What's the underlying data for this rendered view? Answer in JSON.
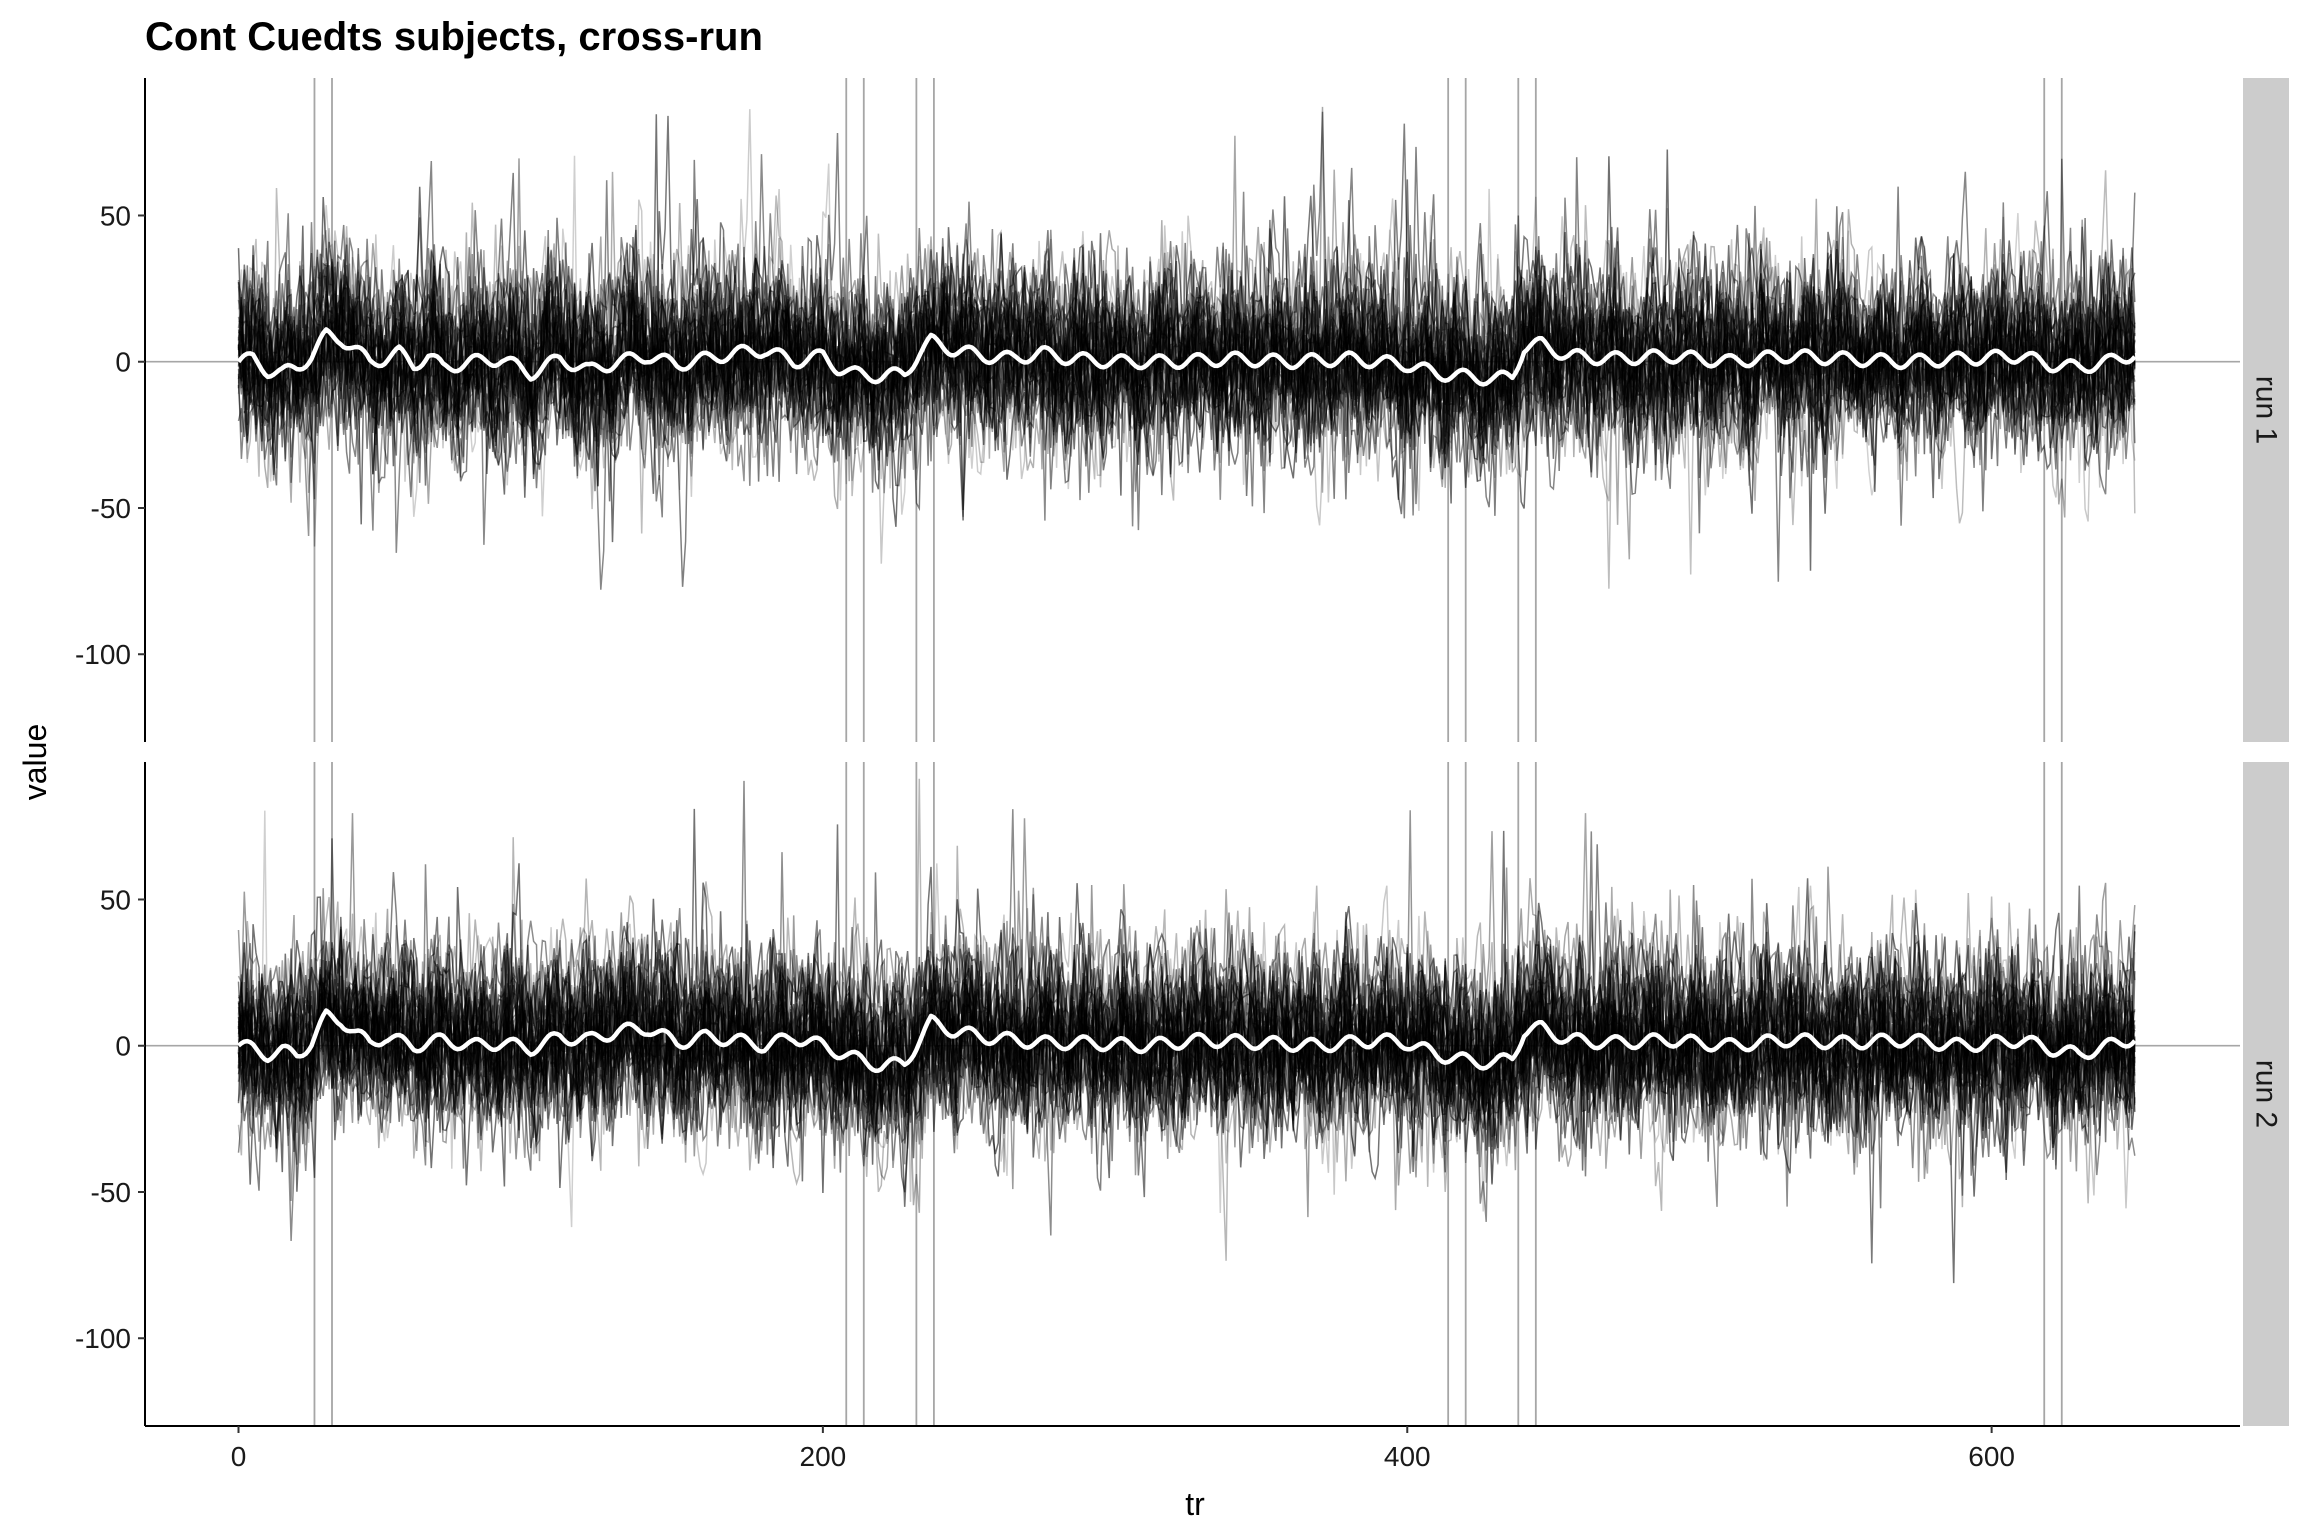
{
  "chart_data": {
    "type": "line",
    "title": "Cont Cuedts subjects, cross-run",
    "xlabel": "tr",
    "ylabel": "value",
    "xlim": [
      -32,
      685
    ],
    "ylim": [
      -130,
      97
    ],
    "x_ticks": [
      0,
      200,
      400,
      600
    ],
    "x_tick_labels": [
      "0",
      "200",
      "400",
      "600"
    ],
    "y_ticks": [
      50,
      0,
      -50,
      -100
    ],
    "y_tick_labels": [
      "50",
      "0",
      "-50",
      "-100"
    ],
    "n_tr": 650,
    "n_subjects": 40,
    "event_lines_x": [
      26,
      32,
      208,
      214,
      232,
      238,
      414,
      420,
      438,
      444,
      618,
      624
    ],
    "hline_y": 0,
    "grid": false,
    "colors": {
      "subject_line": "#000000",
      "mean_line": "#ffffff",
      "event_line": "#a6a6a6",
      "strip": "#cccccc"
    },
    "panels": [
      {
        "strip_label": "run 1",
        "mean_anchors": [
          [
            0,
            0
          ],
          [
            5,
            1
          ],
          [
            10,
            -3
          ],
          [
            15,
            -4
          ],
          [
            20,
            -2
          ],
          [
            25,
            2
          ],
          [
            30,
            9
          ],
          [
            35,
            8
          ],
          [
            40,
            4
          ],
          [
            45,
            0
          ],
          [
            50,
            1
          ],
          [
            55,
            3
          ],
          [
            60,
            -1
          ],
          [
            65,
            2
          ],
          [
            70,
            -2
          ],
          [
            80,
            0
          ],
          [
            90,
            1
          ],
          [
            100,
            -4
          ],
          [
            110,
            1
          ],
          [
            120,
            -3
          ],
          [
            130,
            0
          ],
          [
            140,
            2
          ],
          [
            150,
            -1
          ],
          [
            160,
            1
          ],
          [
            170,
            3
          ],
          [
            180,
            4
          ],
          [
            190,
            0
          ],
          [
            200,
            2
          ],
          [
            205,
            -2
          ],
          [
            210,
            -4
          ],
          [
            220,
            -5
          ],
          [
            228,
            -4
          ],
          [
            233,
            3
          ],
          [
            237,
            7
          ],
          [
            245,
            4
          ],
          [
            255,
            2
          ],
          [
            265,
            1
          ],
          [
            275,
            3
          ],
          [
            285,
            1
          ],
          [
            300,
            0
          ],
          [
            320,
            0
          ],
          [
            340,
            1
          ],
          [
            360,
            0
          ],
          [
            380,
            1
          ],
          [
            400,
            -1
          ],
          [
            410,
            -4
          ],
          [
            420,
            -5
          ],
          [
            430,
            -6
          ],
          [
            436,
            -5
          ],
          [
            440,
            5
          ],
          [
            446,
            6
          ],
          [
            455,
            2
          ],
          [
            470,
            1
          ],
          [
            490,
            2
          ],
          [
            510,
            0
          ],
          [
            530,
            2
          ],
          [
            550,
            1
          ],
          [
            570,
            0
          ],
          [
            590,
            1
          ],
          [
            610,
            2
          ],
          [
            620,
            -1
          ],
          [
            630,
            -2
          ],
          [
            640,
            0
          ],
          [
            650,
            3
          ]
        ]
      },
      {
        "strip_label": "run 2",
        "mean_anchors": [
          [
            0,
            0
          ],
          [
            5,
            -1
          ],
          [
            10,
            -3
          ],
          [
            15,
            -2
          ],
          [
            20,
            -3
          ],
          [
            25,
            1
          ],
          [
            30,
            10
          ],
          [
            35,
            9
          ],
          [
            40,
            4
          ],
          [
            45,
            1
          ],
          [
            50,
            3
          ],
          [
            60,
            0
          ],
          [
            70,
            2
          ],
          [
            80,
            0
          ],
          [
            90,
            1
          ],
          [
            100,
            -1
          ],
          [
            110,
            3
          ],
          [
            120,
            2
          ],
          [
            130,
            5
          ],
          [
            140,
            6
          ],
          [
            150,
            1
          ],
          [
            160,
            3
          ],
          [
            170,
            2
          ],
          [
            180,
            0
          ],
          [
            190,
            3
          ],
          [
            200,
            0
          ],
          [
            205,
            -2
          ],
          [
            210,
            -4
          ],
          [
            220,
            -7
          ],
          [
            228,
            -6
          ],
          [
            233,
            2
          ],
          [
            237,
            8
          ],
          [
            245,
            5
          ],
          [
            255,
            3
          ],
          [
            265,
            2
          ],
          [
            275,
            1
          ],
          [
            290,
            1
          ],
          [
            310,
            0
          ],
          [
            330,
            2
          ],
          [
            350,
            1
          ],
          [
            370,
            0
          ],
          [
            390,
            2
          ],
          [
            400,
            1
          ],
          [
            410,
            -3
          ],
          [
            420,
            -5
          ],
          [
            430,
            -6
          ],
          [
            436,
            -4
          ],
          [
            440,
            5
          ],
          [
            446,
            6
          ],
          [
            455,
            2
          ],
          [
            470,
            1
          ],
          [
            490,
            2
          ],
          [
            510,
            0
          ],
          [
            530,
            2
          ],
          [
            550,
            1
          ],
          [
            570,
            2
          ],
          [
            590,
            0
          ],
          [
            610,
            2
          ],
          [
            620,
            -1
          ],
          [
            630,
            -3
          ],
          [
            640,
            0
          ],
          [
            650,
            3
          ]
        ]
      }
    ]
  }
}
